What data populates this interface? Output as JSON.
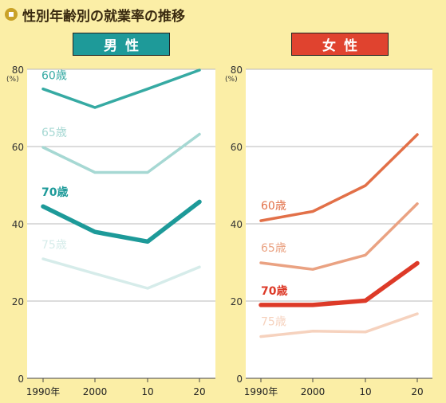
{
  "title": "性別年齢別の就業率の推移",
  "colors": {
    "background": "#fbeea6",
    "plot_bg": "#ffffff",
    "grid": "#b8b8b8",
    "male_label_bg": "#1e9a99",
    "female_label_bg": "#e0432f"
  },
  "y_unit_label": "(%)",
  "chart_data": [
    {
      "type": "line",
      "title": "男性",
      "x": [
        "1990年",
        "2000",
        "10",
        "20"
      ],
      "ylim": [
        0,
        80
      ],
      "yticks": [
        0,
        20,
        40,
        60,
        80
      ],
      "grid": true,
      "series": [
        {
          "name": "60歳",
          "values": [
            74.9,
            70.1,
            74.9,
            79.8
          ],
          "color": "#36aaa3",
          "width": 3.5
        },
        {
          "name": "65歳",
          "values": [
            59.8,
            53.3,
            53.3,
            63.2
          ],
          "color": "#a6d8d3",
          "width": 3.5
        },
        {
          "name": "70歳",
          "values": [
            44.5,
            37.9,
            35.4,
            45.7
          ],
          "color": "#1d9a99",
          "width": 5.5
        },
        {
          "name": "75歳",
          "values": [
            30.9,
            27.1,
            23.3,
            28.8
          ],
          "color": "#d6ecea",
          "width": 3.5
        }
      ]
    },
    {
      "type": "line",
      "title": "女性",
      "x": [
        "1990年",
        "2000",
        "10",
        "20"
      ],
      "ylim": [
        0,
        80
      ],
      "yticks": [
        0,
        20,
        40,
        60,
        80
      ],
      "grid": true,
      "series": [
        {
          "name": "60歳",
          "values": [
            40.8,
            43.2,
            49.9,
            63.1
          ],
          "color": "#e27048",
          "width": 3.5
        },
        {
          "name": "65歳",
          "values": [
            29.9,
            28.2,
            31.9,
            45.2
          ],
          "color": "#eaa282",
          "width": 3.5
        },
        {
          "name": "70歳",
          "values": [
            19.0,
            19.0,
            20.1,
            29.8
          ],
          "color": "#dd3a28",
          "width": 5.5
        },
        {
          "name": "75歳",
          "values": [
            10.8,
            12.2,
            12.0,
            16.7
          ],
          "color": "#f6d2be",
          "width": 3.5
        }
      ]
    }
  ]
}
